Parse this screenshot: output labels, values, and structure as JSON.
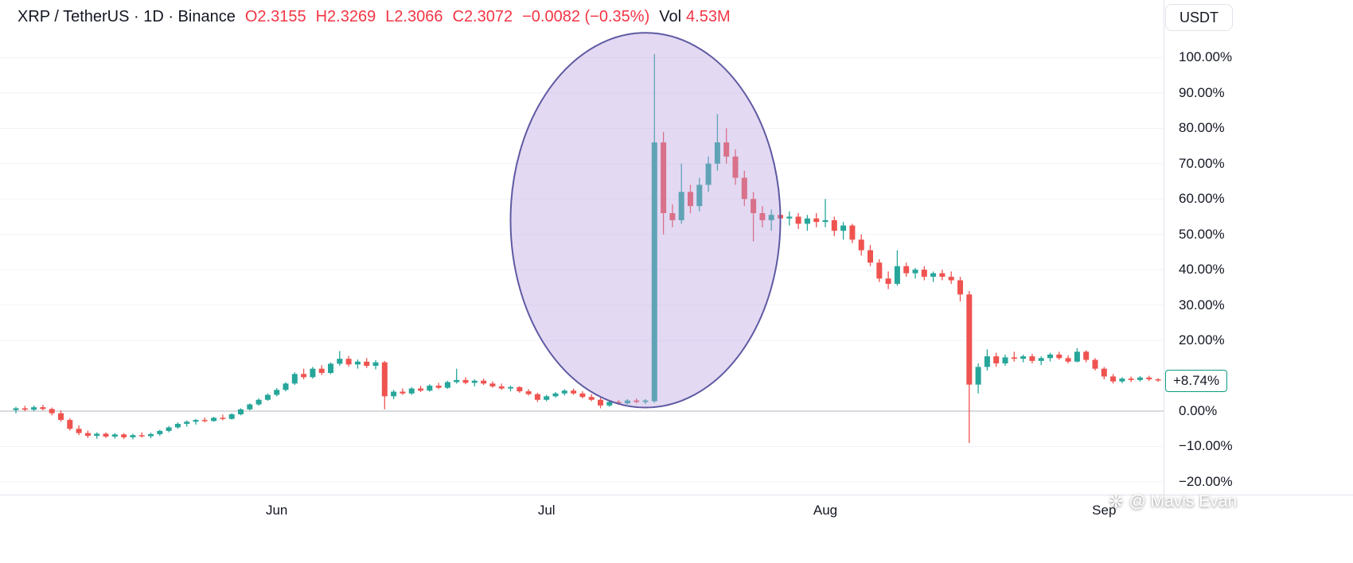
{
  "header": {
    "symbol": "XRP / TetherUS · 1D · Binance",
    "ohlc": [
      {
        "label": "O",
        "value": "2.3155"
      },
      {
        "label": "H",
        "value": "2.3269"
      },
      {
        "label": "L",
        "value": "2.3066"
      },
      {
        "label": "C",
        "value": "2.3072"
      }
    ],
    "change": "−0.0082 (−0.35%)",
    "vol_label": "Vol",
    "vol_value": "4.53M",
    "unit_button": "USDT"
  },
  "price_label": {
    "text": "+8.74%",
    "value_pct": 8.74
  },
  "watermark": {
    "icon": "❋",
    "text": "@ Mavis Evan"
  },
  "colors": {
    "up": "#26a69a",
    "down": "#ef5350",
    "header_red": "#f23645",
    "text": "#131722",
    "grid": "#f0f3fa",
    "zero_line": "#b2b5be",
    "axis_border": "#e0e3eb",
    "badge_border": "#089981",
    "ellipse_fill": "rgba(185,160,225,0.40)",
    "ellipse_stroke": "#5f5aa2"
  },
  "chart_data": {
    "type": "candlestick",
    "title": "XRP / TetherUS · 1D · Binance",
    "scale": "percent-change",
    "ylim": [
      -25,
      105
    ],
    "grid": "horizontal-faint-with-zero-line",
    "y_ticks": [
      {
        "v": 100,
        "label": "100.00%"
      },
      {
        "v": 90,
        "label": "90.00%"
      },
      {
        "v": 80,
        "label": "80.00%"
      },
      {
        "v": 70,
        "label": "70.00%"
      },
      {
        "v": 60,
        "label": "60.00%"
      },
      {
        "v": 50,
        "label": "50.00%"
      },
      {
        "v": 40,
        "label": "40.00%"
      },
      {
        "v": 30,
        "label": "30.00%"
      },
      {
        "v": 20,
        "label": "20.00%"
      },
      {
        "v": 0,
        "label": "0.00%"
      },
      {
        "v": -10,
        "label": "−10.00%"
      },
      {
        "v": -20,
        "label": "−20.00%"
      }
    ],
    "x_ticks": [
      {
        "index": 29,
        "label": "Jun"
      },
      {
        "index": 59,
        "label": "Jul"
      },
      {
        "index": 90,
        "label": "Aug"
      },
      {
        "index": 121,
        "label": "Sep"
      }
    ],
    "last_close_pct": 8.74,
    "annotation_ellipse": {
      "center_index": 70,
      "center_pct": 54,
      "rx_days": 15,
      "ry_pct": 53
    },
    "candles": [
      [
        0.3,
        1.2,
        -0.6,
        0.8
      ],
      [
        0.8,
        1.5,
        0,
        0.4
      ],
      [
        0.4,
        1.6,
        0,
        1.1
      ],
      [
        1.1,
        1.8,
        0.2,
        0.6
      ],
      [
        0.6,
        1,
        -1.2,
        -0.6
      ],
      [
        -0.6,
        0.2,
        -3,
        -2.5
      ],
      [
        -2.5,
        -2,
        -5.5,
        -5
      ],
      [
        -5,
        -4,
        -6.8,
        -6.2
      ],
      [
        -6.2,
        -5.5,
        -7.6,
        -7
      ],
      [
        -7,
        -6,
        -7.8,
        -6.4
      ],
      [
        -6.4,
        -6,
        -7.6,
        -7.2
      ],
      [
        -7.2,
        -6.2,
        -7.8,
        -6.6
      ],
      [
        -6.6,
        -6.2,
        -7.9,
        -7.4
      ],
      [
        -7.4,
        -6.4,
        -8,
        -6.8
      ],
      [
        -6.8,
        -6,
        -7.5,
        -7.1
      ],
      [
        -7.1,
        -6.1,
        -7.7,
        -6.5
      ],
      [
        -6.5,
        -5.3,
        -7,
        -5.6
      ],
      [
        -5.6,
        -4.2,
        -6,
        -4.6
      ],
      [
        -4.6,
        -3.2,
        -5,
        -3.6
      ],
      [
        -3.6,
        -2.6,
        -4.4,
        -3
      ],
      [
        -3,
        -2.2,
        -3.8,
        -2.5
      ],
      [
        -2.5,
        -1.8,
        -3.2,
        -2.8
      ],
      [
        -2.8,
        -1.6,
        -3,
        -1.9
      ],
      [
        -1.9,
        -1,
        -2.6,
        -2.2
      ],
      [
        -2.2,
        -0.6,
        -2.4,
        -0.9
      ],
      [
        -0.9,
        0.8,
        -1.2,
        0.5
      ],
      [
        0.5,
        2.2,
        0.2,
        1.9
      ],
      [
        1.9,
        3.6,
        1.5,
        3.2
      ],
      [
        3.2,
        5,
        2.9,
        4.6
      ],
      [
        4.6,
        6.5,
        4.2,
        6
      ],
      [
        6,
        8.2,
        5.6,
        7.8
      ],
      [
        7.8,
        11,
        7.4,
        10.5
      ],
      [
        10.5,
        12,
        9,
        9.6
      ],
      [
        9.6,
        12.5,
        9.2,
        12
      ],
      [
        12,
        13,
        10.2,
        10.8
      ],
      [
        10.8,
        13.8,
        10.4,
        13.4
      ],
      [
        13.4,
        17,
        12.8,
        14.8
      ],
      [
        14.8,
        15.6,
        12.6,
        13.2
      ],
      [
        13.2,
        14.6,
        12,
        14
      ],
      [
        14,
        15,
        12.2,
        12.8
      ],
      [
        12.8,
        14.4,
        11.8,
        13.8
      ],
      [
        13.8,
        14.2,
        0.5,
        4.2
      ],
      [
        4.2,
        6,
        3.4,
        5.5
      ],
      [
        5.5,
        6.4,
        4.6,
        5
      ],
      [
        5,
        6.8,
        4.6,
        6.4
      ],
      [
        6.4,
        7.2,
        5.4,
        5.8
      ],
      [
        5.8,
        7.6,
        5.5,
        7.2
      ],
      [
        7.2,
        8,
        6.2,
        6.6
      ],
      [
        6.6,
        8.6,
        6.3,
        8.2
      ],
      [
        8.2,
        12,
        7.8,
        8.8
      ],
      [
        8.8,
        9.6,
        7.6,
        8
      ],
      [
        8,
        9,
        7,
        8.6
      ],
      [
        8.6,
        9.2,
        7.4,
        7.8
      ],
      [
        7.8,
        8.4,
        6.6,
        7
      ],
      [
        7,
        7.8,
        6,
        6.4
      ],
      [
        6.4,
        7.2,
        5.6,
        6.8
      ],
      [
        6.8,
        7,
        5.2,
        5.6
      ],
      [
        5.6,
        6.2,
        4.4,
        4.8
      ],
      [
        4.8,
        5.2,
        2.6,
        3.2
      ],
      [
        3.2,
        4.6,
        2.8,
        4.2
      ],
      [
        4.2,
        5.4,
        3.8,
        5
      ],
      [
        5,
        6.2,
        4.4,
        5.8
      ],
      [
        5.8,
        6.4,
        4.6,
        5
      ],
      [
        5,
        5.6,
        3.6,
        4
      ],
      [
        4,
        4.8,
        2.8,
        3.2
      ],
      [
        3.2,
        3.8,
        0.8,
        1.6
      ],
      [
        1.6,
        3,
        1.2,
        2.6
      ],
      [
        2.6,
        3.2,
        1.8,
        2.2
      ],
      [
        2.2,
        3.4,
        1.9,
        3
      ],
      [
        3,
        3.6,
        2.2,
        2.6
      ],
      [
        2.6,
        3.4,
        2,
        3
      ],
      [
        2.8,
        101,
        2.4,
        76
      ],
      [
        76,
        79,
        50,
        56
      ],
      [
        56,
        58.5,
        52,
        54
      ],
      [
        54,
        70,
        53,
        62
      ],
      [
        62,
        64,
        56,
        58
      ],
      [
        58,
        66,
        56.5,
        64
      ],
      [
        64,
        72,
        62,
        70
      ],
      [
        70,
        84,
        68,
        76
      ],
      [
        76,
        80,
        70,
        72
      ],
      [
        72,
        74,
        64,
        66
      ],
      [
        66,
        68,
        58,
        60
      ],
      [
        60,
        62,
        48,
        56
      ],
      [
        56,
        58,
        52,
        54
      ],
      [
        54,
        57,
        51,
        55.5
      ],
      [
        55.5,
        58,
        53,
        54.5
      ],
      [
        54.5,
        56.5,
        52.5,
        55
      ],
      [
        55,
        56,
        51.5,
        53
      ],
      [
        53,
        55.5,
        51,
        54.5
      ],
      [
        54.5,
        56,
        52,
        53.5
      ],
      [
        53.5,
        60,
        52,
        54
      ],
      [
        54,
        55,
        49.5,
        51
      ],
      [
        51,
        53.5,
        48.5,
        52.5
      ],
      [
        52.5,
        53,
        47.5,
        48.5
      ],
      [
        48.5,
        50,
        44,
        45.5
      ],
      [
        45.5,
        47,
        41,
        42
      ],
      [
        42,
        43,
        36.5,
        37.5
      ],
      [
        37.5,
        39.5,
        34.5,
        36
      ],
      [
        36,
        45.5,
        35.5,
        41
      ],
      [
        41,
        42,
        38,
        39
      ],
      [
        39,
        40.5,
        37.5,
        40
      ],
      [
        40,
        41,
        37,
        38
      ],
      [
        38,
        39.5,
        36.5,
        39
      ],
      [
        39,
        40,
        37,
        38
      ],
      [
        38,
        39.5,
        36,
        37
      ],
      [
        37,
        38,
        31,
        33
      ],
      [
        33,
        34,
        -9,
        7.5
      ],
      [
        7.5,
        13.5,
        5,
        12.5
      ],
      [
        12.5,
        17.5,
        11.5,
        15.5
      ],
      [
        15.5,
        16.5,
        12.5,
        13.5
      ],
      [
        13.5,
        16,
        12.8,
        15.2
      ],
      [
        15.2,
        16.8,
        14,
        14.8
      ],
      [
        14.8,
        16,
        13.8,
        15.5
      ],
      [
        15.5,
        16.2,
        13.5,
        14.2
      ],
      [
        14.2,
        15.5,
        13,
        15
      ],
      [
        15,
        16.5,
        14,
        16
      ],
      [
        16,
        16.8,
        14.5,
        15
      ],
      [
        15,
        15.8,
        13.5,
        14
      ],
      [
        14,
        17.8,
        13.8,
        16.8
      ],
      [
        16.8,
        17.2,
        13.8,
        14.5
      ],
      [
        14.5,
        15,
        11.5,
        12
      ],
      [
        12,
        12.5,
        9,
        9.8
      ],
      [
        9.8,
        10.5,
        7.8,
        8.4
      ],
      [
        8.4,
        9.6,
        7.9,
        9.2
      ],
      [
        9.2,
        9.8,
        8.2,
        8.8
      ],
      [
        8.8,
        9.9,
        8.3,
        9.5
      ],
      [
        9.5,
        10,
        8.5,
        9
      ],
      [
        9,
        9.3,
        8.3,
        8.74
      ]
    ]
  }
}
